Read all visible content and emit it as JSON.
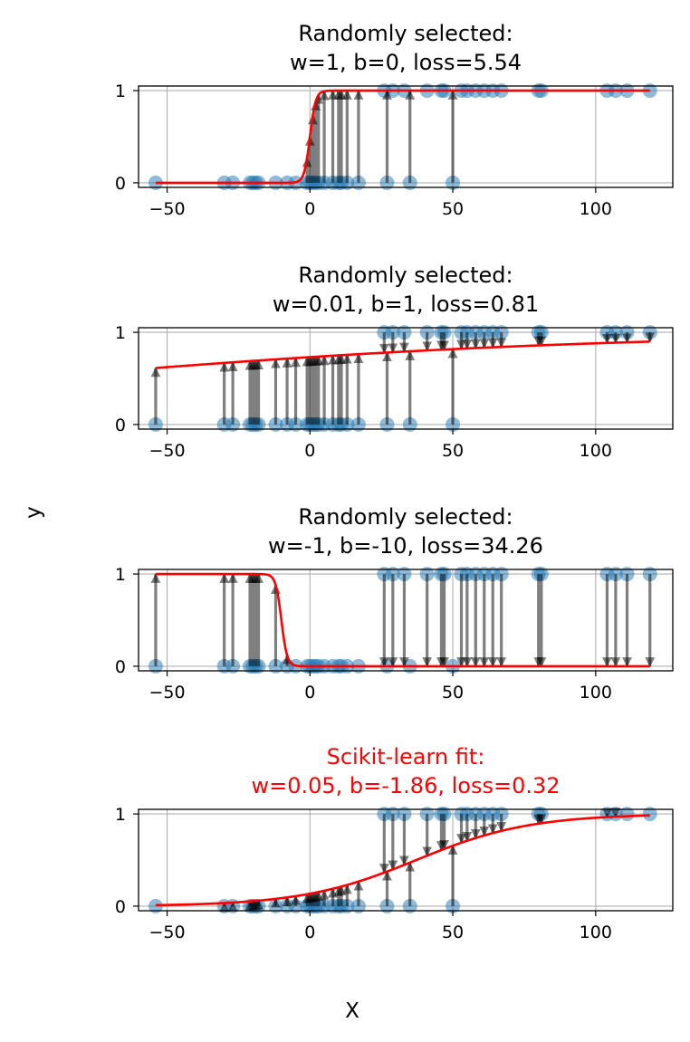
{
  "figure": {
    "xlabel": "X",
    "ylabel": "y"
  },
  "chart_data": [
    {
      "type": "scatter",
      "title": "Randomly selected:\nw=1, b=0, loss=5.54",
      "title_color": "#000000",
      "w": 1,
      "b": 0,
      "xlim": [
        -60,
        127
      ],
      "ylim": [
        -0.05,
        1.05
      ],
      "xticks": [
        -50,
        0,
        50,
        100
      ],
      "yticks": [
        0,
        1
      ],
      "grid": true,
      "x_points": [
        -54,
        -30,
        -27,
        -21,
        -20,
        -19,
        -18,
        -12,
        -8,
        -5,
        -1,
        0,
        1,
        2,
        3,
        5,
        8,
        10,
        11,
        13,
        17,
        26,
        27,
        29,
        33,
        35,
        41,
        46,
        47,
        50,
        53,
        55,
        58,
        61,
        64,
        67,
        80,
        81,
        104,
        107,
        111,
        119
      ],
      "y_points": [
        0,
        0,
        0,
        0,
        0,
        0,
        0,
        0,
        0,
        0,
        0,
        0,
        0,
        0,
        0,
        0,
        0,
        0,
        0,
        0,
        0,
        1,
        0,
        1,
        1,
        0,
        1,
        1,
        1,
        0,
        1,
        1,
        1,
        1,
        1,
        1,
        1,
        1,
        1,
        1,
        1,
        1
      ]
    },
    {
      "type": "scatter",
      "title": "Randomly selected:\nw=0.01, b=1, loss=0.81",
      "title_color": "#000000",
      "w": 0.01,
      "b": 1,
      "xlim": [
        -60,
        127
      ],
      "ylim": [
        -0.05,
        1.05
      ],
      "xticks": [
        -50,
        0,
        50,
        100
      ],
      "yticks": [
        0,
        1
      ],
      "grid": true,
      "x_points": [
        -54,
        -30,
        -27,
        -21,
        -20,
        -19,
        -18,
        -12,
        -8,
        -5,
        -1,
        0,
        1,
        2,
        3,
        5,
        8,
        10,
        11,
        13,
        17,
        26,
        27,
        29,
        33,
        35,
        41,
        46,
        47,
        50,
        53,
        55,
        58,
        61,
        64,
        67,
        80,
        81,
        104,
        107,
        111,
        119
      ],
      "y_points": [
        0,
        0,
        0,
        0,
        0,
        0,
        0,
        0,
        0,
        0,
        0,
        0,
        0,
        0,
        0,
        0,
        0,
        0,
        0,
        0,
        0,
        1,
        0,
        1,
        1,
        0,
        1,
        1,
        1,
        0,
        1,
        1,
        1,
        1,
        1,
        1,
        1,
        1,
        1,
        1,
        1,
        1
      ]
    },
    {
      "type": "scatter",
      "title": "Randomly selected:\nw=-1, b=-10, loss=34.26",
      "title_color": "#000000",
      "w": -1,
      "b": -10,
      "xlim": [
        -60,
        127
      ],
      "ylim": [
        -0.05,
        1.05
      ],
      "xticks": [
        -50,
        0,
        50,
        100
      ],
      "yticks": [
        0,
        1
      ],
      "grid": true,
      "x_points": [
        -54,
        -30,
        -27,
        -21,
        -20,
        -19,
        -18,
        -12,
        -8,
        -5,
        -1,
        0,
        1,
        2,
        3,
        5,
        8,
        10,
        11,
        13,
        17,
        26,
        27,
        29,
        33,
        35,
        41,
        46,
        47,
        50,
        53,
        55,
        58,
        61,
        64,
        67,
        80,
        81,
        104,
        107,
        111,
        119
      ],
      "y_points": [
        0,
        0,
        0,
        0,
        0,
        0,
        0,
        0,
        0,
        0,
        0,
        0,
        0,
        0,
        0,
        0,
        0,
        0,
        0,
        0,
        0,
        1,
        0,
        1,
        1,
        0,
        1,
        1,
        1,
        0,
        1,
        1,
        1,
        1,
        1,
        1,
        1,
        1,
        1,
        1,
        1,
        1
      ]
    },
    {
      "type": "scatter",
      "title": "Scikit-learn fit:\nw=0.05, b=-1.86, loss=0.32",
      "title_color": "#ff0000",
      "w": 0.05,
      "b": -1.86,
      "xlim": [
        -60,
        127
      ],
      "ylim": [
        -0.05,
        1.05
      ],
      "xticks": [
        -50,
        0,
        50,
        100
      ],
      "yticks": [
        0,
        1
      ],
      "grid": true,
      "x_points": [
        -54,
        -30,
        -27,
        -21,
        -20,
        -19,
        -18,
        -12,
        -8,
        -5,
        -1,
        0,
        1,
        2,
        3,
        5,
        8,
        10,
        11,
        13,
        17,
        26,
        27,
        29,
        33,
        35,
        41,
        46,
        47,
        50,
        53,
        55,
        58,
        61,
        64,
        67,
        80,
        81,
        104,
        107,
        111,
        119
      ],
      "y_points": [
        0,
        0,
        0,
        0,
        0,
        0,
        0,
        0,
        0,
        0,
        0,
        0,
        0,
        0,
        0,
        0,
        0,
        0,
        0,
        0,
        0,
        1,
        0,
        1,
        1,
        0,
        1,
        1,
        1,
        0,
        1,
        1,
        1,
        1,
        1,
        1,
        1,
        1,
        1,
        1,
        1,
        1
      ]
    }
  ],
  "colors": {
    "points": "#1f77b4",
    "curve": "#ff0000",
    "residual_arrows": "#000000",
    "grid": "#b0b0b0"
  }
}
